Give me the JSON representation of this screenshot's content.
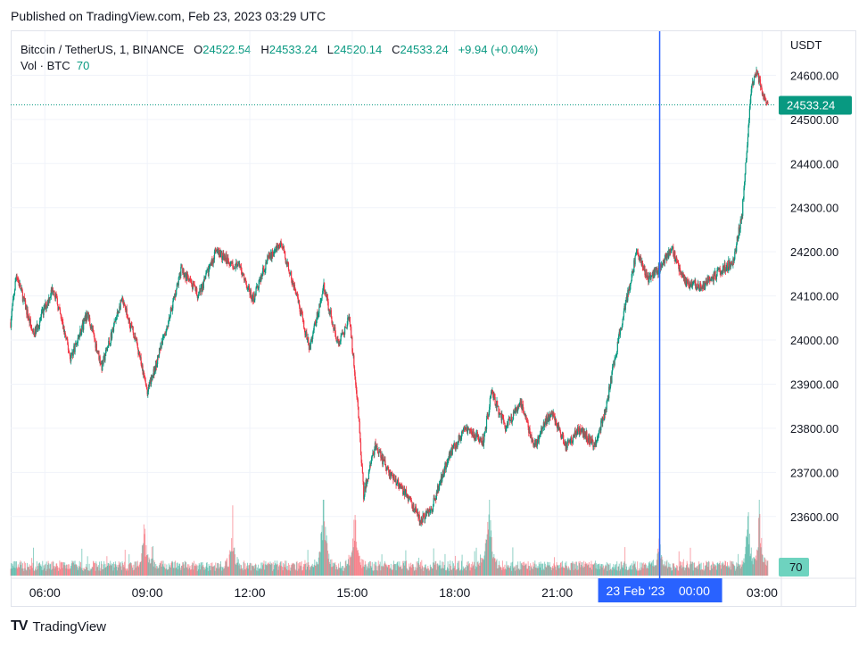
{
  "header": {
    "published": "Published on TradingView.com, Feb 23, 2023 03:29 UTC"
  },
  "legend": {
    "symbol": "Bitcoin / TetherUS, 1, BINANCE",
    "open_label": "O",
    "open": "24522.54",
    "high_label": "H",
    "high": "24533.24",
    "low_label": "L",
    "low": "24520.14",
    "close_label": "C",
    "close": "24533.24",
    "change": "+9.94 (+0.04%)",
    "vol_label": "Vol · BTC",
    "vol_value": "70"
  },
  "footer": {
    "brand": "TradingView",
    "logo": "TV"
  },
  "colors": {
    "up": "#089981",
    "down": "#f23645",
    "crosshair": "#2962ff",
    "price_line": "#089981"
  },
  "chart_data": {
    "type": "candlestick",
    "currency": "USDT",
    "ylim": [
      23460,
      24700
    ],
    "y_ticks": [
      23600,
      23700,
      23800,
      23900,
      24000,
      24100,
      24200,
      24300,
      24400,
      24500,
      24600
    ],
    "y_tick_labels": [
      "23600.00",
      "23700.00",
      "23800.00",
      "23900.00",
      "24000.00",
      "24100.00",
      "24200.00",
      "24300.00",
      "24400.00",
      "24500.00",
      "24600.00"
    ],
    "x_ticks": [
      "06:00",
      "09:00",
      "12:00",
      "15:00",
      "18:00",
      "21:00",
      "03:00"
    ],
    "crosshair_label": "23 Feb '23    00:00",
    "last_price": "24533.24",
    "last_volume": "70",
    "price_path": [
      [
        "05:00",
        24040
      ],
      [
        "05:10",
        24150
      ],
      [
        "05:40",
        24010
      ],
      [
        "06:15",
        24120
      ],
      [
        "06:45",
        23960
      ],
      [
        "07:15",
        24060
      ],
      [
        "07:40",
        23940
      ],
      [
        "08:15",
        24090
      ],
      [
        "08:40",
        24000
      ],
      [
        "09:00",
        23880
      ],
      [
        "09:30",
        24010
      ],
      [
        "10:00",
        24160
      ],
      [
        "10:30",
        24100
      ],
      [
        "11:00",
        24200
      ],
      [
        "11:45",
        24160
      ],
      [
        "12:05",
        24090
      ],
      [
        "12:30",
        24180
      ],
      [
        "12:55",
        24220
      ],
      [
        "13:20",
        24110
      ],
      [
        "13:45",
        23980
      ],
      [
        "14:10",
        24120
      ],
      [
        "14:35",
        23990
      ],
      [
        "14:55",
        24050
      ],
      [
        "15:10",
        23850
      ],
      [
        "15:20",
        23650
      ],
      [
        "15:40",
        23760
      ],
      [
        "16:05",
        23700
      ],
      [
        "16:40",
        23640
      ],
      [
        "17:00",
        23590
      ],
      [
        "17:20",
        23620
      ],
      [
        "17:50",
        23740
      ],
      [
        "18:20",
        23800
      ],
      [
        "18:50",
        23770
      ],
      [
        "19:05",
        23880
      ],
      [
        "19:30",
        23800
      ],
      [
        "19:55",
        23860
      ],
      [
        "20:20",
        23760
      ],
      [
        "20:50",
        23840
      ],
      [
        "21:15",
        23760
      ],
      [
        "21:40",
        23800
      ],
      [
        "22:05",
        23760
      ],
      [
        "22:25",
        23840
      ],
      [
        "22:40",
        23950
      ],
      [
        "23:00",
        24080
      ],
      [
        "23:20",
        24200
      ],
      [
        "23:40",
        24140
      ],
      [
        "00:00",
        24160
      ],
      [
        "00:20",
        24210
      ],
      [
        "00:45",
        24130
      ],
      [
        "01:15",
        24120
      ],
      [
        "01:40",
        24150
      ],
      [
        "02:10",
        24180
      ],
      [
        "02:25",
        24290
      ],
      [
        "02:40",
        24560
      ],
      [
        "02:50",
        24610
      ],
      [
        "03:05",
        24540
      ],
      [
        "03:10",
        24533
      ]
    ],
    "volume_spikes": [
      [
        "08:55",
        85
      ],
      [
        "11:30",
        70
      ],
      [
        "14:10",
        200
      ],
      [
        "15:05",
        140
      ],
      [
        "19:00",
        180
      ],
      [
        "00:00",
        60
      ],
      [
        "02:35",
        110
      ],
      [
        "02:55",
        120
      ]
    ]
  }
}
